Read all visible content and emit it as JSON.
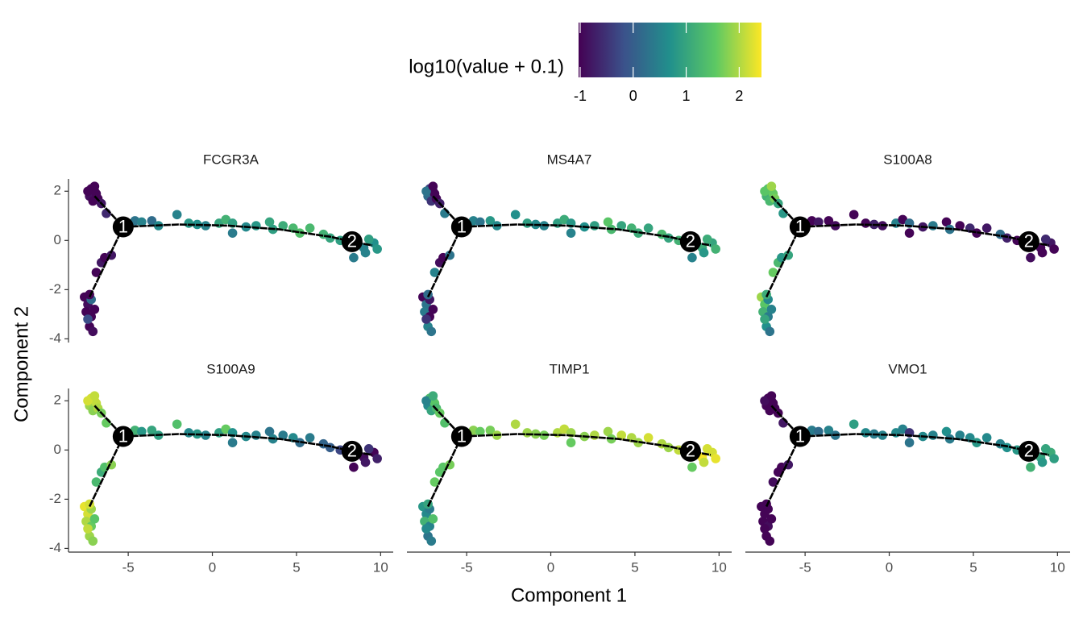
{
  "chart_data": {
    "type": "scatter",
    "x_label": "Component 1",
    "y_label": "Component 2",
    "xlim": [
      -8.55,
      10.75
    ],
    "ylim": [
      -4.15,
      2.5
    ],
    "xticks": [
      -5,
      0,
      5,
      10
    ],
    "yticks": [
      -4,
      -2,
      0,
      2
    ],
    "x": [
      -7.2,
      -7.0,
      -7.3,
      -6.9,
      -7.1,
      -6.8,
      -7.4,
      -7.0,
      -6.6,
      -6.3,
      -7.6,
      -7.4,
      -7.2,
      -7.5,
      -7.2,
      -7.3,
      -7.1,
      -7.4,
      -7.0,
      -7.3,
      -6.9,
      -6.6,
      -6.4,
      -6.0,
      -4.6,
      -4.2,
      -3.6,
      -3.2,
      -2.1,
      -1.4,
      -0.9,
      -0.4,
      0.4,
      0.8,
      1.2,
      1.2,
      2.0,
      2.6,
      3.4,
      3.6,
      4.2,
      4.8,
      5.2,
      5.8,
      6.6,
      7.0,
      7.6,
      8.6,
      9.0,
      9.6,
      9.8,
      9.3,
      8.4,
      9.1
    ],
    "y": [
      2.1,
      2.0,
      1.8,
      1.9,
      1.6,
      1.7,
      2.0,
      2.2,
      1.5,
      1.1,
      -2.3,
      -2.6,
      -2.4,
      -2.9,
      -3.1,
      -3.5,
      -3.7,
      -3.2,
      -2.8,
      -2.2,
      -1.3,
      -0.9,
      -0.7,
      -0.6,
      0.8,
      0.75,
      0.8,
      0.6,
      1.05,
      0.7,
      0.65,
      0.6,
      0.7,
      0.85,
      0.7,
      0.3,
      0.55,
      0.6,
      0.75,
      0.45,
      0.6,
      0.5,
      0.3,
      0.5,
      0.25,
      0.1,
      0.0,
      0.0,
      -0.3,
      -0.1,
      -0.35,
      0.05,
      -0.7,
      -0.5
    ],
    "facets": [
      {
        "name": "FCGR3A",
        "values": [
          -1,
          -1,
          -0.9,
          -1,
          -1,
          -1,
          -1,
          -1,
          -0.8,
          -0.6,
          -1,
          -0.9,
          0.2,
          -1,
          -1,
          -1,
          -0.9,
          -0.2,
          -1,
          -1,
          -1,
          -0.8,
          -1,
          -0.8,
          0.3,
          0.5,
          0.2,
          0.6,
          0.5,
          0.8,
          0.7,
          0.5,
          1.0,
          1.2,
          0.9,
          0.4,
          0.6,
          0.8,
          1.0,
          0.9,
          1.1,
          1.3,
          1.4,
          1.3,
          1.2,
          1.0,
          0.9,
          0.6,
          0.5,
          0.7,
          0.8,
          0.9,
          0.4,
          0.5
        ]
      },
      {
        "name": "MS4A7",
        "values": [
          -0.3,
          -1,
          0.2,
          -1,
          -0.5,
          -1,
          0.3,
          -1,
          -0.7,
          0.4,
          -1,
          0.3,
          -0.8,
          0.4,
          -1,
          0.5,
          0.3,
          -0.5,
          -1,
          0.2,
          0.5,
          -0.9,
          -1,
          0.3,
          0.5,
          0.3,
          0.8,
          0.6,
          0.7,
          0.9,
          0.6,
          0.5,
          0.9,
          1.1,
          0.8,
          0.5,
          0.7,
          0.9,
          1.5,
          1.3,
          1.0,
          1.2,
          1.1,
          1.0,
          1.3,
          1.0,
          1.2,
          1.4,
          1.1,
          1.0,
          1.2,
          1.1,
          0.5,
          0.8
        ]
      },
      {
        "name": "S100A8",
        "values": [
          1.4,
          1.8,
          1.2,
          1.6,
          1.3,
          1.7,
          1.5,
          1.9,
          1.0,
          0.8,
          1.9,
          1.5,
          0.6,
          1.2,
          0.4,
          0.7,
          0.3,
          1.0,
          0.5,
          1.1,
          1.6,
          1.3,
          0.8,
          1.0,
          -1,
          -0.8,
          -1,
          -0.9,
          -1,
          -1,
          -0.7,
          -0.9,
          0.5,
          -1,
          0.2,
          -1,
          -0.8,
          0.4,
          -1,
          0.3,
          -1,
          -0.6,
          -1,
          -0.8,
          0.2,
          -0.7,
          -1,
          -0.9,
          -1,
          -0.8,
          -1,
          -0.6,
          -0.9,
          -1
        ]
      },
      {
        "name": "S100A9",
        "values": [
          2.2,
          2.3,
          1.9,
          2.1,
          1.8,
          2.0,
          2.2,
          2.1,
          1.7,
          1.6,
          2.3,
          2.2,
          1.9,
          2.0,
          1.6,
          1.9,
          1.8,
          2.1,
          1.5,
          2.2,
          1.3,
          1.1,
          1.4,
          1.8,
          1.2,
          0.8,
          1.0,
          0.9,
          1.4,
          0.6,
          0.8,
          0.5,
          0.9,
          1.6,
          0.7,
          0.4,
          0.6,
          0.5,
          0.3,
          0.5,
          0.4,
          0.6,
          0.2,
          0.4,
          0.1,
          0.0,
          -0.3,
          -0.8,
          -0.9,
          -1,
          -0.7,
          -0.5,
          -1,
          -0.8
        ]
      },
      {
        "name": "TIMP1",
        "values": [
          1.4,
          1.2,
          0.6,
          1.5,
          1.0,
          1.3,
          0.5,
          1.1,
          1.6,
          1.4,
          0.8,
          0.6,
          0.4,
          1.2,
          0.5,
          0.3,
          0.4,
          0.6,
          1.4,
          1.0,
          1.6,
          1.5,
          1.5,
          1.7,
          1.8,
          1.6,
          1.7,
          1.9,
          2.0,
          1.9,
          1.8,
          1.7,
          2.0,
          2.1,
          1.9,
          1.6,
          1.8,
          2.0,
          1.9,
          1.7,
          2.1,
          2.0,
          1.9,
          2.2,
          2.0,
          1.9,
          2.1,
          2.3,
          2.4,
          2.2,
          2.3,
          2.2,
          1.6,
          2.1
        ]
      },
      {
        "name": "VMO1",
        "values": [
          -1,
          -0.9,
          -1,
          -1,
          -1,
          -1,
          -0.9,
          -1,
          -1,
          -0.8,
          -1,
          -1,
          -1,
          -1,
          -0.9,
          -1,
          -1,
          -1,
          -1,
          -1,
          -0.9,
          -1,
          -1,
          -0.8,
          0.4,
          0.2,
          0.5,
          0.3,
          0.9,
          0.6,
          0.4,
          0.5,
          0.6,
          0.5,
          -0.5,
          0.3,
          0.6,
          0.5,
          0.7,
          0.4,
          0.5,
          0.6,
          0.8,
          0.6,
          0.5,
          0.7,
          0.8,
          0.9,
          1.0,
          1.1,
          0.9,
          1.0,
          1.2,
          0.8
        ]
      }
    ],
    "trajectory": {
      "x": [
        -7.3,
        -5.3,
        null,
        -7.0,
        -5.3,
        null,
        -5.3,
        -2,
        1,
        4,
        7,
        8.3,
        9.5
      ],
      "y": [
        -2.3,
        0.55,
        null,
        1.8,
        0.55,
        null,
        0.55,
        0.65,
        0.6,
        0.45,
        0.15,
        -0.05,
        -0.2
      ]
    },
    "branch_points": {
      "labels": [
        "1",
        "2"
      ],
      "x": [
        -5.3,
        8.3
      ],
      "y": [
        0.55,
        -0.05
      ]
    },
    "colorbar": {
      "label": "log10(value + 0.1)",
      "lim": [
        -1.03,
        2.42
      ],
      "ticks": [
        -1,
        0,
        1,
        2
      ],
      "colors": [
        "#440154",
        "#3b528b",
        "#21908c",
        "#5dc963",
        "#fde725"
      ]
    }
  }
}
